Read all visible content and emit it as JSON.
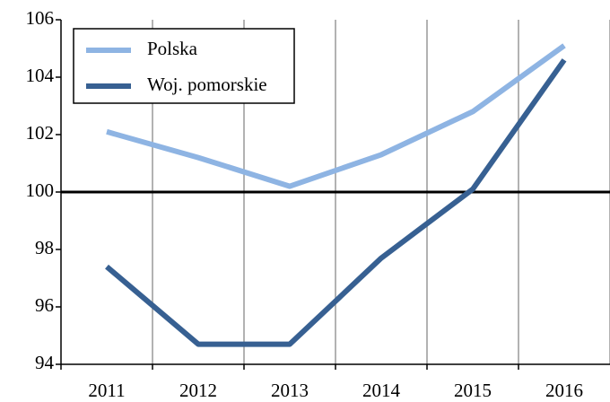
{
  "chart_data": {
    "type": "line",
    "categories": [
      "2011",
      "2012",
      "2013",
      "2014",
      "2015",
      "2016"
    ],
    "series": [
      {
        "name": "Polska",
        "color": "#8eb4e3",
        "values": [
          102.1,
          101.2,
          100.2,
          101.3,
          102.8,
          105.1
        ]
      },
      {
        "name": "Woj. pomorskie",
        "color": "#376092",
        "values": [
          97.4,
          94.7,
          94.7,
          97.7,
          100.1,
          104.6
        ]
      }
    ],
    "ylim": [
      94,
      106
    ],
    "yticks": [
      94,
      96,
      98,
      100,
      102,
      104,
      106
    ],
    "reference_line": 100,
    "legend": "upper left"
  }
}
